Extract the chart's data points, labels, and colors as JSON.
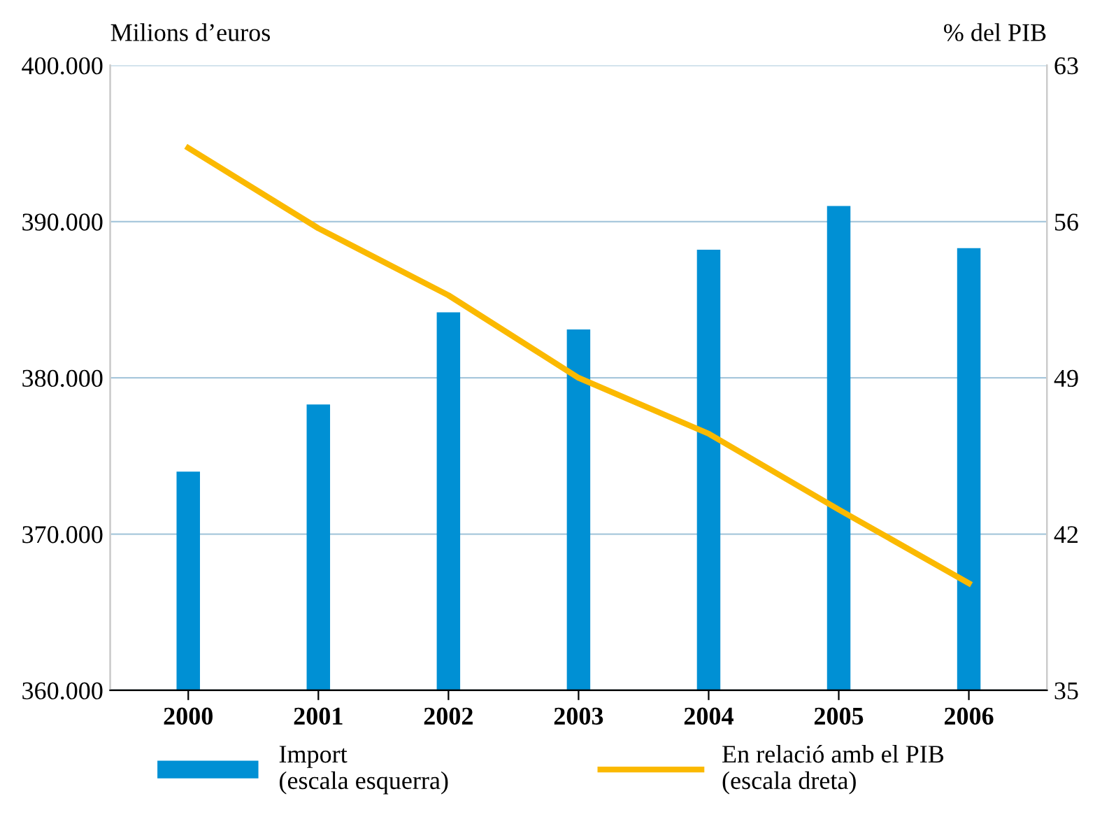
{
  "chart_data": {
    "type": "bar",
    "categories": [
      "2000",
      "2001",
      "2002",
      "2003",
      "2004",
      "2005",
      "2006"
    ],
    "ylabel": "Milions d’euros",
    "y2label": "% del PIB",
    "series": [
      {
        "name": "Import\n(escala esquerra)",
        "color": "#0090d4",
        "values": [
          374000,
          378300,
          384200,
          383100,
          388200,
          391000,
          388300
        ]
      },
      {
        "name": "En relació amb el PIB\n(escala dreta)",
        "type": "line",
        "axis": "y2",
        "color": "#fbb900",
        "values": [
          59.3,
          55.7,
          52.7,
          49.0,
          46.5,
          43.1,
          39.8
        ]
      }
    ],
    "ylim": [
      360000,
      400000
    ],
    "yticks": [
      {
        "value": 360000,
        "label": "360.000"
      },
      {
        "value": 370000,
        "label": "370.000"
      },
      {
        "value": 380000,
        "label": "380.000"
      },
      {
        "value": 390000,
        "label": "390.000"
      },
      {
        "value": 400000,
        "label": "400.000"
      }
    ],
    "y2lim": [
      35,
      63
    ],
    "y2ticks": [
      35,
      42,
      49,
      56,
      63
    ],
    "grid": "y",
    "legend": "bottom"
  }
}
